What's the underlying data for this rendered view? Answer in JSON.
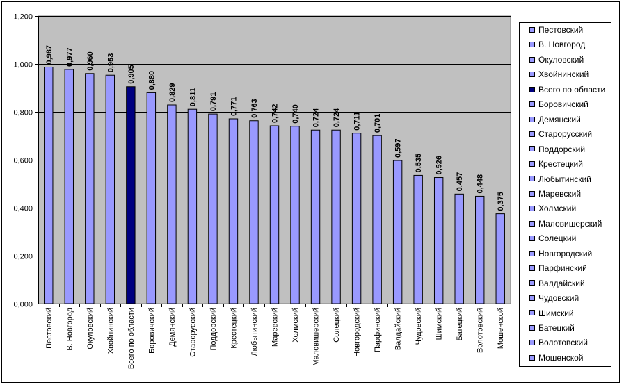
{
  "chart_data": {
    "type": "bar",
    "categories": [
      "Пестовский",
      "В. Новгород",
      "Окуловский",
      "Хвойнинский",
      "Всего по области",
      "Боровичский",
      "Демянский",
      "Старорусский",
      "Поддорский",
      "Крестецкий",
      "Любытинский",
      "Маревский",
      "Холмский",
      "Маловишерский",
      "Солецкий",
      "Новгородский",
      "Парфинский",
      "Валдайский",
      "Чудовский",
      "Шимский",
      "Батецкий",
      "Волотовский",
      "Мошенской"
    ],
    "values": [
      0.987,
      0.977,
      0.96,
      0.953,
      0.905,
      0.88,
      0.829,
      0.811,
      0.791,
      0.771,
      0.763,
      0.742,
      0.74,
      0.724,
      0.724,
      0.711,
      0.701,
      0.597,
      0.535,
      0.526,
      0.457,
      0.448,
      0.375
    ],
    "value_labels": [
      "0,987",
      "0,977",
      "0,960",
      "0,953",
      "0,905",
      "0,880",
      "0,829",
      "0,811",
      "0,791",
      "0,771",
      "0,763",
      "0,742",
      "0,740",
      "0,724",
      "0,724",
      "0,711",
      "0,701",
      "0,597",
      "0,535",
      "0,526",
      "0,457",
      "0,448",
      "0,375"
    ],
    "highlight_category": "Всего по области",
    "ylim": [
      0,
      1.2
    ],
    "yticks": [
      0,
      0.2,
      0.4,
      0.6,
      0.8,
      1.0,
      1.2
    ],
    "ytick_labels": [
      "0,000",
      "0,200",
      "0,400",
      "0,600",
      "0,800",
      "1,000",
      "1,200"
    ],
    "grid": true,
    "legend_position": "right",
    "title": "",
    "xlabel": "",
    "ylabel": ""
  },
  "colors": {
    "bar": "#9999ff",
    "bar_highlight": "#000080",
    "plot_background": "#c0c0c0",
    "gridline": "#000000"
  },
  "legend": {
    "items": [
      "Пестовский",
      "В. Новгород",
      "Окуловский",
      "Хвойнинский",
      "Всего по области",
      "Боровичский",
      "Демянский",
      "Старорусский",
      "Поддорский",
      "Крестецкий",
      "Любытинский",
      "Маревский",
      "Холмский",
      "Маловишерский",
      "Солецкий",
      "Новгородский",
      "Парфинский",
      "Валдайский",
      "Чудовский",
      "Шимский",
      "Батецкий",
      "Волотовский",
      "Мошенской"
    ]
  }
}
